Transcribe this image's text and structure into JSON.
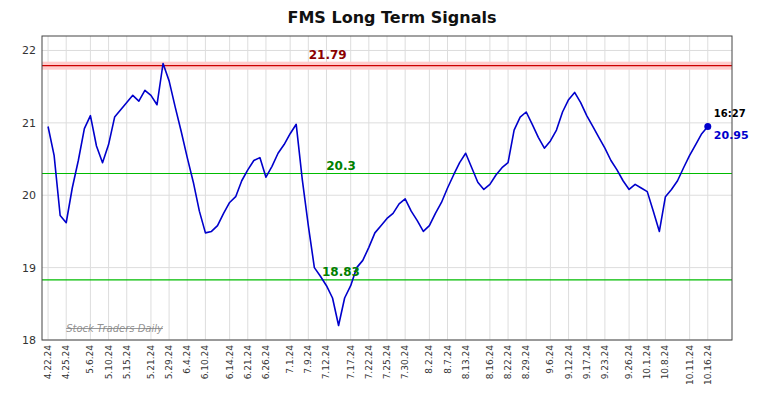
{
  "chart_data": {
    "type": "line",
    "title": "FMS Long Term Signals",
    "categories": [
      "4.22.24",
      null,
      null,
      "4.25.24",
      null,
      null,
      null,
      "5.6.24",
      null,
      null,
      "5.10.24",
      null,
      null,
      "5.15.24",
      null,
      null,
      null,
      "5.21.24",
      null,
      null,
      "5.29.24",
      null,
      null,
      "6.4.24",
      null,
      null,
      "6.10.24",
      null,
      null,
      null,
      "6.14.24",
      null,
      null,
      "6.21.24",
      null,
      null,
      "6.26.24",
      null,
      null,
      null,
      "7.1.24",
      null,
      null,
      "7.9.24",
      null,
      null,
      "7.12.24",
      null,
      null,
      null,
      "7.17.24",
      null,
      null,
      "7.22.24",
      null,
      null,
      "7.25.24",
      null,
      null,
      "7.30.24",
      null,
      null,
      null,
      "8.2.24",
      null,
      null,
      "8.7.24",
      null,
      null,
      "8.13.24",
      null,
      null,
      null,
      "8.16.24",
      null,
      null,
      "8.22.24",
      null,
      null,
      "8.29.24",
      null,
      null,
      null,
      "9.6.24",
      null,
      null,
      "9.12.24",
      null,
      null,
      "9.17.24",
      null,
      null,
      "9.23.24",
      null,
      null,
      null,
      "9.26.24",
      null,
      null,
      "10.1.24",
      null,
      null,
      "10.8.24",
      null,
      null,
      null,
      "10.11.24",
      null,
      null,
      "10.16.24"
    ],
    "values": [
      20.95,
      20.55,
      19.72,
      19.62,
      20.1,
      20.48,
      20.92,
      21.1,
      20.68,
      20.45,
      20.7,
      21.08,
      21.18,
      21.28,
      21.38,
      21.3,
      21.45,
      21.38,
      21.25,
      21.82,
      21.58,
      21.22,
      20.88,
      20.52,
      20.18,
      19.78,
      19.48,
      19.5,
      19.58,
      19.75,
      19.9,
      19.98,
      20.2,
      20.35,
      20.48,
      20.52,
      20.25,
      20.4,
      20.58,
      20.7,
      20.85,
      20.98,
      20.22,
      19.58,
      19.0,
      18.88,
      18.75,
      18.58,
      18.2,
      18.58,
      18.75,
      19.0,
      19.1,
      19.28,
      19.48,
      19.58,
      19.68,
      19.75,
      19.88,
      19.95,
      19.78,
      19.65,
      19.5,
      19.58,
      19.75,
      19.9,
      20.1,
      20.28,
      20.45,
      20.58,
      20.38,
      20.18,
      20.08,
      20.15,
      20.28,
      20.38,
      20.45,
      20.9,
      21.08,
      21.15,
      20.98,
      20.8,
      20.65,
      20.75,
      20.9,
      21.15,
      21.32,
      21.42,
      21.28,
      21.1,
      20.95,
      20.8,
      20.65,
      20.48,
      20.35,
      20.2,
      20.08,
      20.15,
      20.1,
      20.05,
      19.78,
      19.5,
      19.98,
      20.08,
      20.2,
      20.38,
      20.55,
      20.7,
      20.85,
      20.95
    ],
    "color": "#0000cc",
    "ylim": [
      18,
      22.2
    ],
    "yticks": [
      18,
      19,
      20,
      21,
      22
    ],
    "grid": true,
    "signal_lines": [
      {
        "value": 21.79,
        "color": "#cc0000",
        "band_color": "#ffcccc",
        "label_color": "darkred"
      },
      {
        "value": 20.3,
        "color": "#00bb00",
        "label_color": "green"
      },
      {
        "value": 18.83,
        "color": "#00bb00",
        "label_color": "green"
      }
    ],
    "last_point": {
      "label": "16:27",
      "value": 20.95
    },
    "watermark": "Stock Traders Daily"
  }
}
